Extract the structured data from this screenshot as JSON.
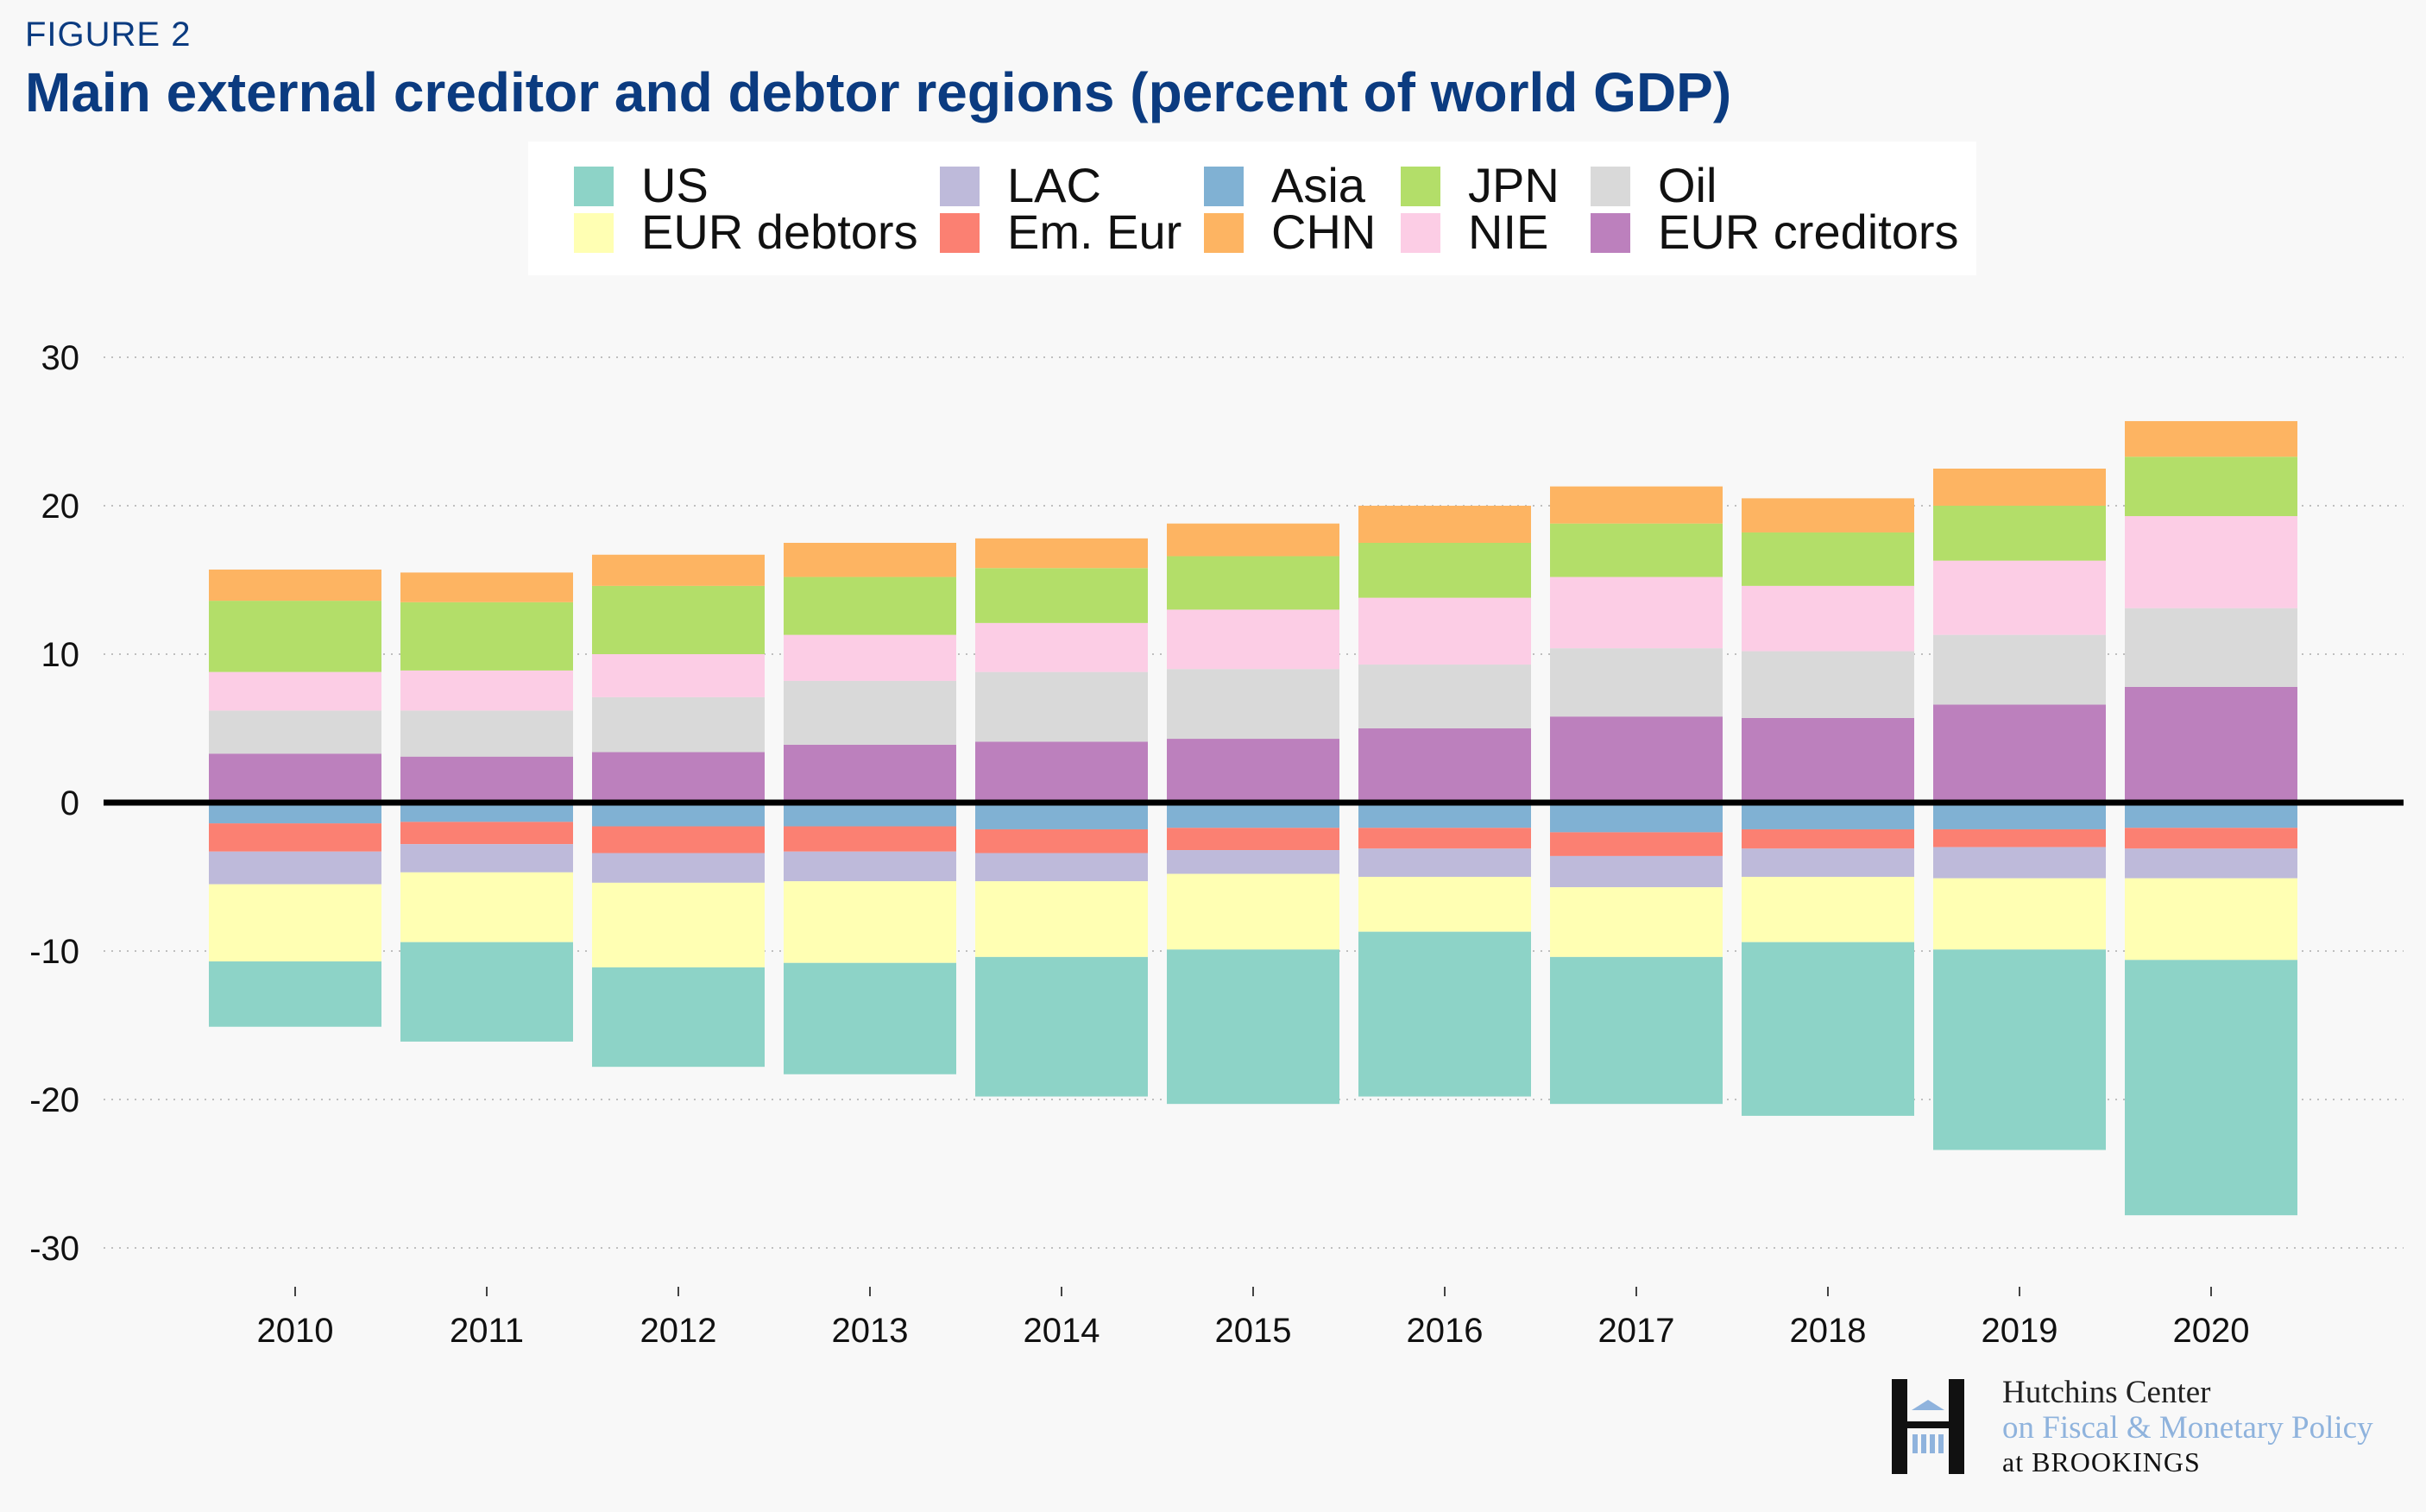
{
  "figure_label": "FIGURE 2",
  "title": "Main external creditor and debtor regions (percent of world GDP)",
  "logo": {
    "line1": "Hutchins Center",
    "line2": "on Fiscal & Monetary Policy",
    "line3": "at BROOKINGS"
  },
  "colors": {
    "US": "#8dd3c7",
    "EUR debtors": "#ffffb3",
    "LAC": "#bebada",
    "Em. Eur": "#fb8072",
    "Asia": "#80b1d3",
    "CHN": "#fdb462",
    "JPN": "#b3de69",
    "NIE": "#fccde5",
    "Oil": "#d9d9d9",
    "EUR creditors": "#bc80bd",
    "title": "#0b3b80",
    "zero_line": "#000000",
    "gridline": "#bfbfbf"
  },
  "chart_data": {
    "type": "bar",
    "stacked": true,
    "title": "Main external creditor and debtor regions (percent of world GDP)",
    "xlabel": "",
    "ylabel": "",
    "ylim": [
      -30,
      30
    ],
    "yticks": [
      30,
      20,
      10,
      0,
      -10,
      -20,
      -30
    ],
    "ytick_labels": [
      "30",
      "20",
      "10",
      "0",
      "-10",
      "-20",
      "-30"
    ],
    "grid": true,
    "legend_position": "top",
    "legend_order": [
      "US",
      "LAC",
      "Asia",
      "JPN",
      "Oil",
      "EUR debtors",
      "Em. Eur",
      "CHN",
      "NIE",
      "EUR creditors"
    ],
    "categories": [
      "2010",
      "2011",
      "2012",
      "2013",
      "2014",
      "2015",
      "2016",
      "2017",
      "2018",
      "2019",
      "2020"
    ],
    "positive_stack_order": [
      "EUR creditors",
      "Oil",
      "NIE",
      "JPN",
      "CHN"
    ],
    "negative_stack_order": [
      "Asia",
      "Em. Eur",
      "LAC",
      "EUR debtors",
      "US"
    ],
    "series": [
      {
        "name": "EUR creditors",
        "values": [
          3.3,
          3.1,
          3.4,
          3.9,
          4.1,
          4.3,
          5.0,
          5.8,
          5.7,
          6.6,
          7.8
        ]
      },
      {
        "name": "Oil",
        "values": [
          2.9,
          3.1,
          3.7,
          4.3,
          4.7,
          4.7,
          4.3,
          4.6,
          4.5,
          4.7,
          5.3
        ]
      },
      {
        "name": "NIE",
        "values": [
          2.6,
          2.7,
          2.9,
          3.1,
          3.3,
          4.0,
          4.5,
          4.8,
          4.4,
          5.0,
          6.2
        ]
      },
      {
        "name": "JPN",
        "values": [
          4.8,
          4.6,
          4.6,
          3.9,
          3.7,
          3.6,
          3.7,
          3.6,
          3.6,
          3.7,
          4.0
        ]
      },
      {
        "name": "CHN",
        "values": [
          2.1,
          2.0,
          2.1,
          2.3,
          2.0,
          2.2,
          2.5,
          2.5,
          2.3,
          2.5,
          2.4
        ]
      },
      {
        "name": "Asia",
        "values": [
          -1.4,
          -1.3,
          -1.6,
          -1.6,
          -1.8,
          -1.7,
          -1.7,
          -2.0,
          -1.8,
          -1.8,
          -1.7
        ]
      },
      {
        "name": "Em. Eur",
        "values": [
          -1.9,
          -1.5,
          -1.8,
          -1.7,
          -1.6,
          -1.5,
          -1.4,
          -1.6,
          -1.3,
          -1.2,
          -1.4
        ]
      },
      {
        "name": "LAC",
        "values": [
          -2.2,
          -1.9,
          -2.0,
          -2.0,
          -1.9,
          -1.6,
          -1.9,
          -2.1,
          -1.9,
          -2.1,
          -2.0
        ]
      },
      {
        "name": "EUR debtors",
        "values": [
          -5.2,
          -4.7,
          -5.7,
          -5.5,
          -5.1,
          -5.1,
          -3.7,
          -4.7,
          -4.4,
          -4.8,
          -5.5
        ]
      },
      {
        "name": "US",
        "values": [
          -4.4,
          -6.7,
          -6.7,
          -7.5,
          -9.4,
          -10.4,
          -11.1,
          -9.9,
          -11.7,
          -13.5,
          -17.2
        ]
      }
    ]
  }
}
